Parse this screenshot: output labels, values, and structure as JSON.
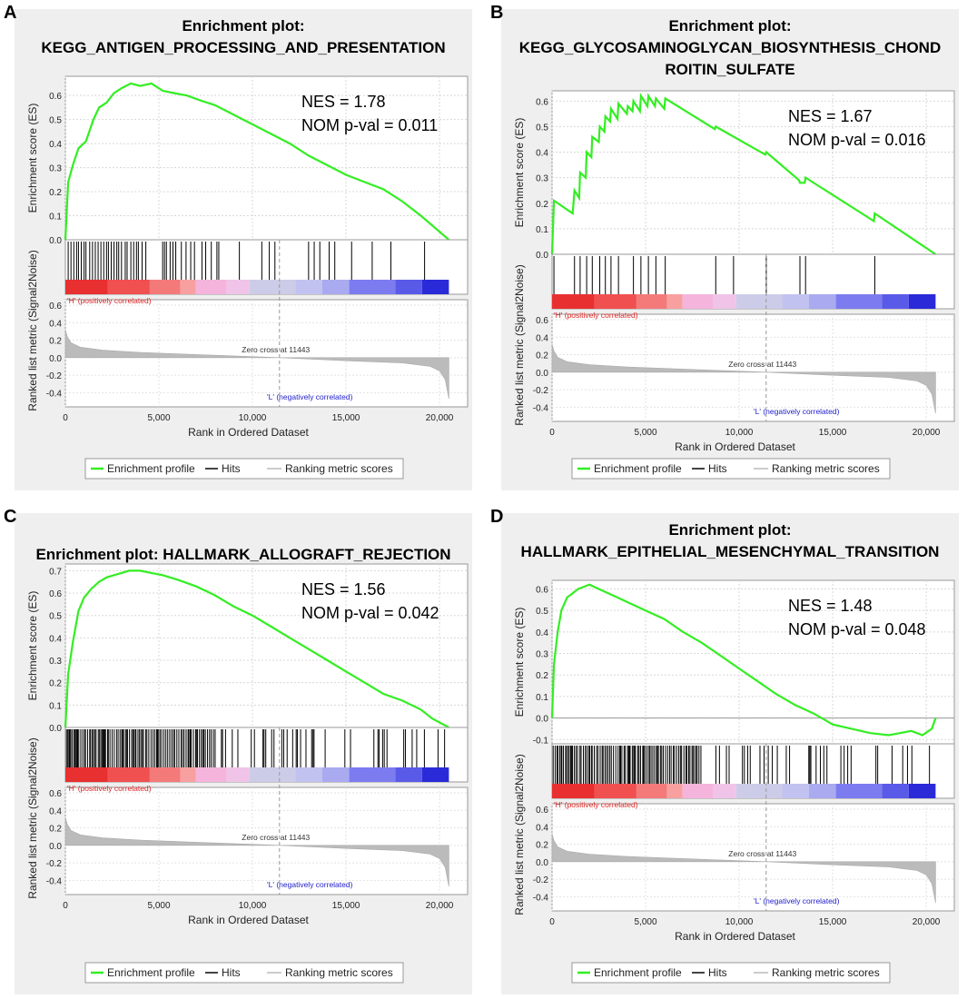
{
  "legend": {
    "profile": "Enrichment profile",
    "hits": "Hits",
    "ranking": "Ranking metric scores"
  },
  "axes": {
    "es_label": "Enrichment score (ES)",
    "metric_label": "Ranked list metric (Signal2Noise)",
    "x_label": "Rank in Ordered Dataset",
    "pos_label": "'H' (positively correlated)",
    "neg_label": "'L' (negatively correlated)",
    "zero_cross": "Zero cross at 11443",
    "x_ticks": [
      "0",
      "5,000",
      "10,000",
      "15,000",
      "20,000"
    ],
    "metric_ticks": [
      "0.6",
      "0.4",
      "0.2",
      "0.0",
      "-0.2",
      "-0.4"
    ]
  },
  "colors": {
    "profile": "#33ee22",
    "hits": "#000000",
    "ranking": "#bbbbbb",
    "pos": "#dd2222",
    "neg": "#2222cc"
  },
  "chart_data": [
    {
      "type": "line",
      "panel": "A",
      "title_lines": [
        "Enrichment plot:",
        "KEGG_ANTIGEN_PROCESSING_AND_PRESENTATION"
      ],
      "nes": "NES = 1.78",
      "pval": "NOM p-val = 0.011",
      "es_ticks": [
        "0.6",
        "0.5",
        "0.4",
        "0.3",
        "0.2",
        "0.1",
        "0.0"
      ],
      "ylim": [
        0,
        0.68
      ],
      "xlim": [
        0,
        21500
      ],
      "es_x": [
        0,
        150,
        400,
        700,
        1100,
        1500,
        1800,
        2200,
        2600,
        3000,
        3500,
        4000,
        4600,
        5200,
        5800,
        6500,
        7200,
        8000,
        9000,
        10000,
        11000,
        12000,
        13000,
        14000,
        15000,
        16000,
        17000,
        18000,
        19000,
        20500
      ],
      "es_y": [
        0,
        0.24,
        0.31,
        0.38,
        0.41,
        0.5,
        0.55,
        0.57,
        0.61,
        0.63,
        0.65,
        0.64,
        0.65,
        0.62,
        0.61,
        0.6,
        0.58,
        0.56,
        0.52,
        0.48,
        0.44,
        0.4,
        0.35,
        0.31,
        0.27,
        0.24,
        0.21,
        0.16,
        0.1,
        0.0
      ],
      "hits": [
        150,
        300,
        450,
        600,
        700,
        850,
        1000,
        1100,
        1300,
        1450,
        1600,
        1750,
        1900,
        2050,
        2200,
        2300,
        2450,
        2600,
        2750,
        2850,
        3000,
        3200,
        3300,
        3500,
        3650,
        3800,
        3900,
        4100,
        4300,
        5200,
        5300,
        5400,
        5600,
        5750,
        5900,
        6200,
        6450,
        6700,
        6900,
        7300,
        7500,
        7800,
        8100,
        8200,
        9300,
        10500,
        10900,
        11200,
        13000,
        13300,
        13600,
        14100,
        14400,
        15300,
        16400,
        17400,
        19200
      ]
    },
    {
      "type": "line",
      "panel": "B",
      "title_lines": [
        "Enrichment plot:",
        "KEGG_GLYCOSAMINOGLYCAN_BIOSYNTHESIS_CHOND",
        "ROITIN_SULFATE"
      ],
      "nes": "NES = 1.67",
      "pval": "NOM p-val = 0.016",
      "es_ticks": [
        "0.6",
        "0.5",
        "0.4",
        "0.3",
        "0.2",
        "0.1",
        "0.0"
      ],
      "ylim": [
        0,
        0.64
      ],
      "xlim": [
        0,
        21500
      ],
      "es_x": [
        0,
        100,
        1100,
        1200,
        1450,
        1500,
        1800,
        1850,
        2100,
        2150,
        2500,
        2550,
        2800,
        2850,
        3100,
        3150,
        3500,
        3550,
        4000,
        4050,
        4300,
        4350,
        4700,
        4750,
        5100,
        5150,
        5500,
        5550,
        6000,
        6050,
        8700,
        8750,
        11400,
        11450,
        13200,
        13250,
        13500,
        13550,
        17200,
        17250,
        20500
      ],
      "es_y": [
        0,
        0.21,
        0.16,
        0.25,
        0.22,
        0.32,
        0.3,
        0.4,
        0.38,
        0.46,
        0.44,
        0.5,
        0.48,
        0.54,
        0.52,
        0.57,
        0.53,
        0.59,
        0.55,
        0.58,
        0.56,
        0.6,
        0.56,
        0.62,
        0.58,
        0.62,
        0.58,
        0.61,
        0.57,
        0.61,
        0.49,
        0.5,
        0.39,
        0.4,
        0.29,
        0.28,
        0.28,
        0.3,
        0.13,
        0.16,
        0.0
      ],
      "hits": [
        100,
        1200,
        1500,
        1850,
        2150,
        2550,
        2850,
        3150,
        3550,
        4350,
        4750,
        5150,
        5550,
        6050,
        8750,
        9700,
        11450,
        13250,
        13550,
        17250
      ]
    },
    {
      "type": "line",
      "panel": "C",
      "title_lines": [
        "Enrichment plot: HALLMARK_ALLOGRAFT_REJECTION"
      ],
      "nes": "NES = 1.56",
      "pval": "NOM p-val = 0.042",
      "es_ticks": [
        "0.7",
        "0.6",
        "0.5",
        "0.4",
        "0.3",
        "0.2",
        "0.1",
        "0.0"
      ],
      "ylim": [
        0,
        0.73
      ],
      "xlim": [
        0,
        21500
      ],
      "es_x": [
        0,
        150,
        400,
        700,
        1000,
        1400,
        1800,
        2200,
        2600,
        3000,
        3400,
        4000,
        4600,
        5200,
        6000,
        7000,
        8000,
        9000,
        10000,
        11000,
        12000,
        13000,
        14000,
        15000,
        16000,
        17000,
        18000,
        19000,
        19600,
        20500
      ],
      "es_y": [
        0,
        0.24,
        0.38,
        0.52,
        0.58,
        0.62,
        0.65,
        0.67,
        0.68,
        0.69,
        0.7,
        0.7,
        0.69,
        0.68,
        0.66,
        0.63,
        0.59,
        0.54,
        0.5,
        0.45,
        0.4,
        0.35,
        0.3,
        0.25,
        0.2,
        0.15,
        0.12,
        0.08,
        0.04,
        0.0
      ]
    },
    {
      "type": "line",
      "panel": "D",
      "title_lines": [
        "Enrichment plot:",
        "HALLMARK_EPITHELIAL_MESENCHYMAL_TRANSITION"
      ],
      "nes": "NES = 1.48",
      "pval": "NOM p-val = 0.048",
      "es_ticks": [
        "0.6",
        "0.5",
        "0.4",
        "0.3",
        "0.2",
        "0.1",
        "0.0",
        "-0.1"
      ],
      "ylim": [
        -0.12,
        0.64
      ],
      "xlim": [
        0,
        21500
      ],
      "es_x": [
        0,
        100,
        300,
        500,
        800,
        1100,
        1400,
        1700,
        2000,
        2500,
        3000,
        3500,
        4000,
        5000,
        6000,
        7000,
        8000,
        9000,
        10000,
        11000,
        12000,
        13000,
        14000,
        15000,
        16000,
        17000,
        18000,
        18600,
        19200,
        19800,
        20300,
        20500
      ],
      "es_y": [
        0,
        0.25,
        0.4,
        0.5,
        0.56,
        0.58,
        0.6,
        0.61,
        0.62,
        0.6,
        0.58,
        0.56,
        0.54,
        0.5,
        0.46,
        0.4,
        0.35,
        0.29,
        0.23,
        0.17,
        0.11,
        0.06,
        0.02,
        -0.03,
        -0.05,
        -0.07,
        -0.08,
        -0.07,
        -0.06,
        -0.08,
        -0.05,
        0.0
      ]
    }
  ]
}
